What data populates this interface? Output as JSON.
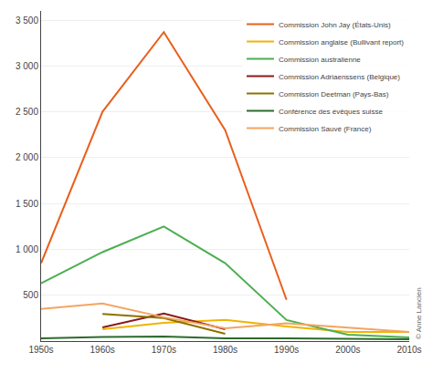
{
  "chart_data": {
    "type": "line",
    "categories": [
      "1950s",
      "1960s",
      "1970s",
      "1980s",
      "1990s",
      "2000s",
      "2010s"
    ],
    "series": [
      {
        "name": "Commission John Jay (États-Unis)",
        "color": "#e8601c",
        "values": [
          850,
          2500,
          3370,
          2300,
          450,
          null,
          null
        ]
      },
      {
        "name": "Commission anglaise (Bullivant report)",
        "color": "#f0b400",
        "values": [
          null,
          130,
          200,
          230,
          160,
          100,
          100
        ]
      },
      {
        "name": "Commission australienne",
        "color": "#4caf50",
        "values": [
          630,
          970,
          1250,
          850,
          230,
          70,
          40
        ]
      },
      {
        "name": "Commission Adriaenssens (Belgique)",
        "color": "#8b1a1a",
        "values": [
          null,
          150,
          300,
          130,
          null,
          null,
          null
        ]
      },
      {
        "name": "Commission Deetman (Pays-Bas)",
        "color": "#8b7300",
        "values": [
          null,
          295,
          250,
          80,
          null,
          null,
          null
        ]
      },
      {
        "name": "Conférence des évêques suisse",
        "color": "#2d6a2d",
        "values": [
          30,
          45,
          50,
          30,
          30,
          25,
          20
        ]
      },
      {
        "name": "Commission Sauvé (France)",
        "color": "#f4a460",
        "values": [
          350,
          410,
          260,
          140,
          195,
          150,
          100
        ]
      }
    ],
    "ylim": [
      0,
      3600
    ],
    "yticks": [
      500,
      {
        "value": 1000,
        "label": "1 000"
      },
      {
        "value": 1500,
        "label": "1 500"
      },
      {
        "value": 2000,
        "label": "2 000"
      },
      {
        "value": 2500,
        "label": "2 500"
      },
      {
        "value": 3000,
        "label": "3 000"
      },
      {
        "value": 3500,
        "label": "3 500"
      }
    ],
    "grid": true,
    "legend": "upper right",
    "annotations": [
      "© Anne Lancien"
    ]
  }
}
